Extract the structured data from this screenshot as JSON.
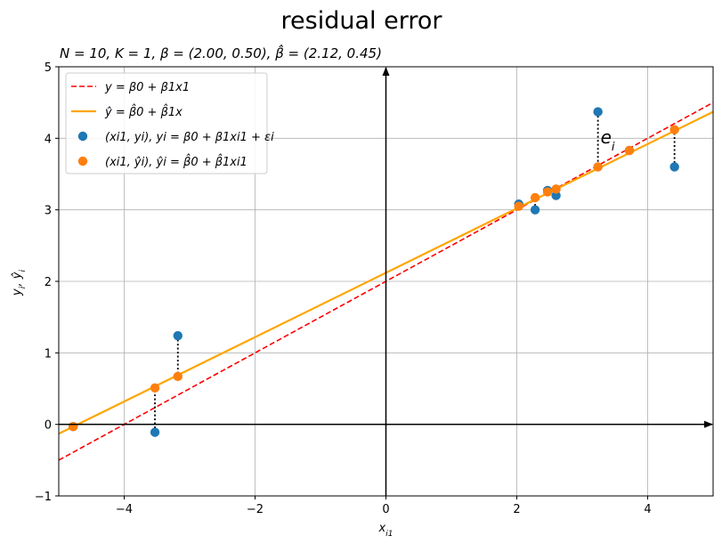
{
  "chart_data": {
    "type": "scatter",
    "title": "residual error",
    "subtitle": "N = 10, K = 1, β = (2.00, 0.50), β̂ = (2.12, 0.45)",
    "xlabel": "x_i1",
    "ylabel": "y_i, ŷ_i",
    "xlim": [
      -5,
      5
    ],
    "ylim": [
      -1,
      5
    ],
    "xticks": [
      -4,
      -2,
      0,
      2,
      4
    ],
    "yticks": [
      -1,
      0,
      1,
      2,
      3,
      4,
      5
    ],
    "xtick_labels": [
      "−4",
      "−2",
      "0",
      "2",
      "4"
    ],
    "ytick_labels": [
      "−1",
      "0",
      "1",
      "2",
      "3",
      "4",
      "5"
    ],
    "grid": true,
    "legend_position": "top-left",
    "true_line": {
      "label": "y = β0 + β1x1",
      "intercept": 2.0,
      "slope": 0.5,
      "color": "#ff0000",
      "style": "dashed"
    },
    "fitted_line": {
      "label": "ŷ = β̂0 + β̂1x",
      "intercept": 2.12,
      "slope": 0.45,
      "color": "#ffa500",
      "style": "solid"
    },
    "series": [
      {
        "name": "(xi1, yi), yi = β0 + β1xi1 + εi",
        "color": "#1f77b4",
        "points": [
          [
            -4.78,
            -0.03
          ],
          [
            -3.53,
            -0.11
          ],
          [
            -3.18,
            1.24
          ],
          [
            2.03,
            3.08
          ],
          [
            2.28,
            3.0
          ],
          [
            2.47,
            3.27
          ],
          [
            2.6,
            3.2
          ],
          [
            3.24,
            4.37
          ],
          [
            3.72,
            3.83
          ],
          [
            4.41,
            3.6
          ]
        ]
      },
      {
        "name": "(xi1, ŷi), ŷi = β̂0 + β̂1xi1",
        "color": "#ff7f0e",
        "points": [
          [
            -4.78,
            -0.03
          ],
          [
            -3.53,
            0.51
          ],
          [
            -3.18,
            0.67
          ],
          [
            2.03,
            3.05
          ],
          [
            2.28,
            3.17
          ],
          [
            2.47,
            3.25
          ],
          [
            2.6,
            3.29
          ],
          [
            3.24,
            3.6
          ],
          [
            3.72,
            3.83
          ],
          [
            4.41,
            4.12
          ]
        ]
      }
    ],
    "annotations": [
      {
        "text": "e",
        "subscript": "i",
        "x": 3.28,
        "y": 3.93
      }
    ]
  }
}
